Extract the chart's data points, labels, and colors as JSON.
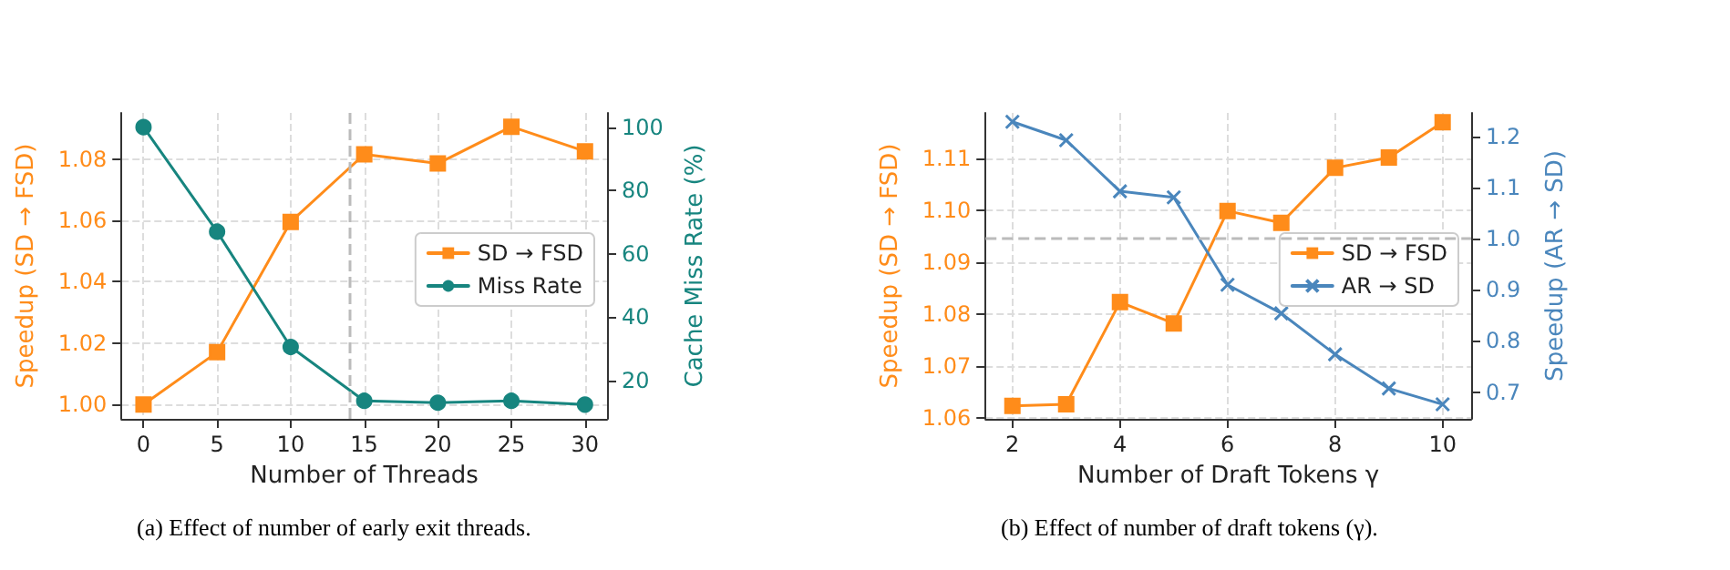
{
  "chart_data": [
    {
      "type": "line",
      "xlabel": "Number of Threads",
      "ylabel": "Speedup (SD → FSD)",
      "y2label": "Cache Miss Rate (%)",
      "annotations": [
        "(a) Effect of number of early exit threads."
      ],
      "x": [
        0,
        5,
        10,
        15,
        20,
        25,
        30
      ],
      "xlim": [
        -1.5,
        31.5
      ],
      "xticks": [
        0,
        5,
        10,
        15,
        20,
        25,
        30
      ],
      "ylim": [
        0.9953,
        1.095
      ],
      "yticks": [
        {
          "value": 1,
          "label": "1.00"
        },
        {
          "value": 1.02,
          "label": "1.02"
        },
        {
          "value": 1.04,
          "label": "1.04"
        },
        {
          "value": 1.06,
          "label": "1.06"
        },
        {
          "value": 1.08,
          "label": "1.08"
        }
      ],
      "y2lim": [
        7.9,
        104.5
      ],
      "y2ticks": [
        20,
        40,
        60,
        80,
        100
      ],
      "series": [
        {
          "name": "SD → FSD",
          "color": "#ff8c1a",
          "marker": "square",
          "values": [
            1.0,
            1.017,
            1.0595,
            1.0815,
            1.0785,
            1.0905,
            1.0825
          ]
        },
        {
          "name": "Miss Rate",
          "color": "#17857f",
          "marker": "circle",
          "axis": "y2",
          "values": [
            100,
            67,
            30.6,
            13.6,
            13.0,
            13.6,
            12.4
          ]
        }
      ],
      "ref_lines": [
        {
          "axis": "x",
          "value": 14,
          "color": "#bbbbbb",
          "line_style": "dashed"
        }
      ],
      "grid": true,
      "legend": "right",
      "line_style": "solid"
    },
    {
      "type": "line",
      "xlabel": "Number of Draft Tokens γ",
      "ylabel": "Speedup (SD → FSD)",
      "y2label": "Speedup (AR → SD)",
      "annotations": [
        "(b) Effect of number of draft tokens (γ)."
      ],
      "x": [
        2,
        3,
        4,
        5,
        6,
        7,
        8,
        9,
        10
      ],
      "xlim": [
        1.5,
        10.53
      ],
      "xticks": [
        2,
        4,
        6,
        8,
        10
      ],
      "ylim": [
        1.0598,
        1.1188
      ],
      "yticks": [
        {
          "value": 1.06,
          "label": "1.06"
        },
        {
          "value": 1.07,
          "label": "1.07"
        },
        {
          "value": 1.08,
          "label": "1.08"
        },
        {
          "value": 1.09,
          "label": "1.09"
        },
        {
          "value": 1.1,
          "label": "1.10"
        },
        {
          "value": 1.11,
          "label": "1.11"
        }
      ],
      "y2lim": [
        0.6476,
        1.2464
      ],
      "y2ticks": [
        0.7,
        0.8,
        0.9,
        {
          "value": 1,
          "label": "1.0"
        },
        1.1,
        1.2
      ],
      "series": [
        {
          "name": "SD → FSD",
          "color": "#ff8c1a",
          "marker": "square",
          "values": [
            1.0623,
            1.0626,
            1.0823,
            1.0782,
            1.0999,
            1.0976,
            1.1082,
            1.1102,
            1.117
          ]
        },
        {
          "name": "AR → SD",
          "color": "#4a86bc",
          "marker": "cross",
          "axis": "y2",
          "values": [
            1.229,
            1.193,
            1.093,
            1.081,
            0.91,
            0.854,
            0.774,
            0.707,
            0.676
          ]
        }
      ],
      "ref_lines": [
        {
          "axis": "y2",
          "value": 1.0,
          "color": "#bbbbbb",
          "line_style": "dashed"
        }
      ],
      "grid": true,
      "legend": "right",
      "line_style": "solid"
    }
  ]
}
